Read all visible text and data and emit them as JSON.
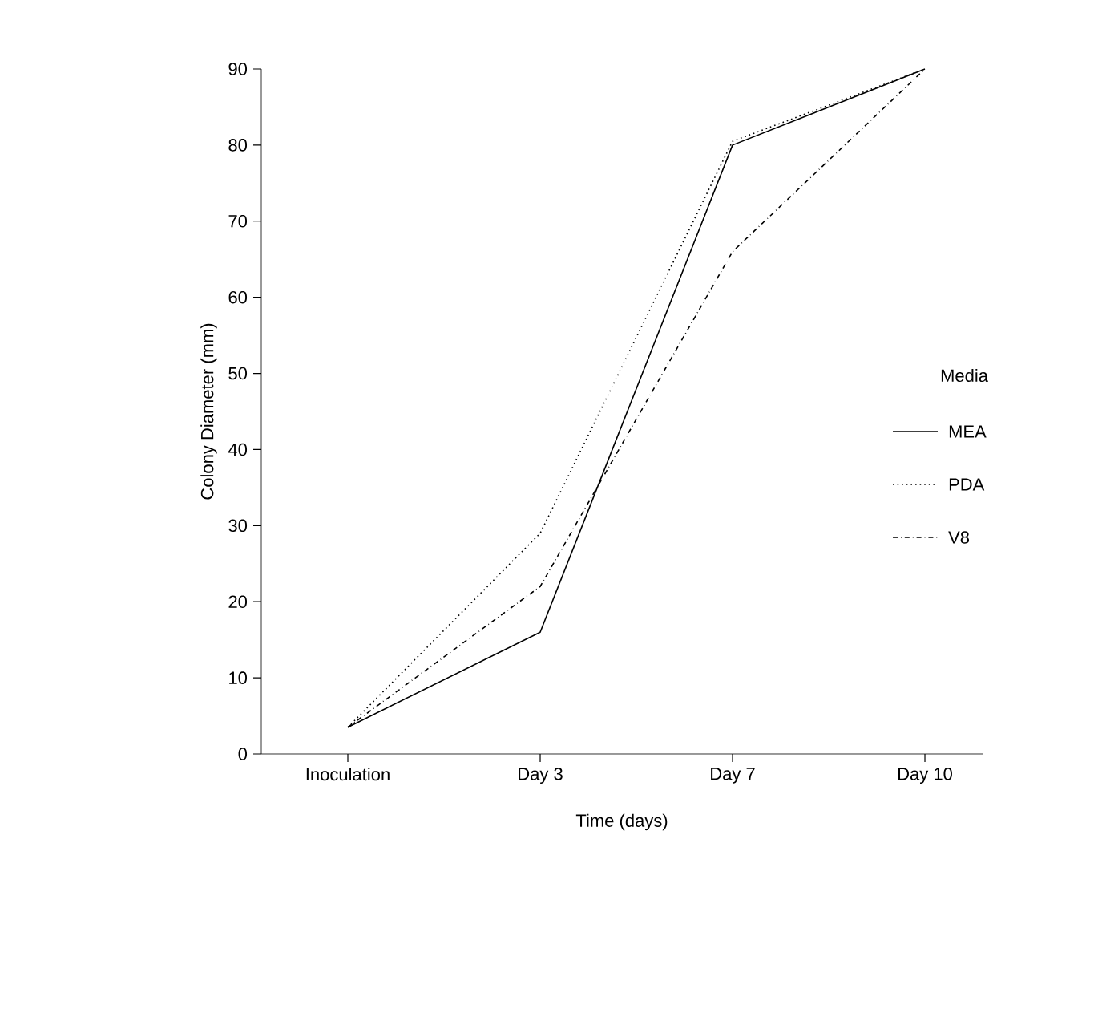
{
  "chart_data": {
    "type": "line",
    "xlabel": "Time (days)",
    "ylabel": "Colony Diameter (mm)",
    "legend_title": "Media",
    "categories": [
      "Inoculation",
      "Day 3",
      "Day 7",
      "Day 10"
    ],
    "series": [
      {
        "name": "MEA",
        "color": "#000000",
        "line_style": "solid",
        "values": [
          3.5,
          16,
          80,
          90
        ]
      },
      {
        "name": "PDA",
        "color": "#000000",
        "line_style": "dotted",
        "values": [
          3.5,
          29,
          80.5,
          90
        ]
      },
      {
        "name": "V8",
        "color": "#000000",
        "line_style": "dashdot",
        "values": [
          3.5,
          22,
          66,
          90
        ]
      }
    ],
    "ylim": [
      0,
      90
    ],
    "yticks": [
      0,
      10,
      20,
      30,
      40,
      50,
      60,
      70,
      80,
      90
    ],
    "grid": false,
    "legend": "right",
    "marker": "none"
  }
}
